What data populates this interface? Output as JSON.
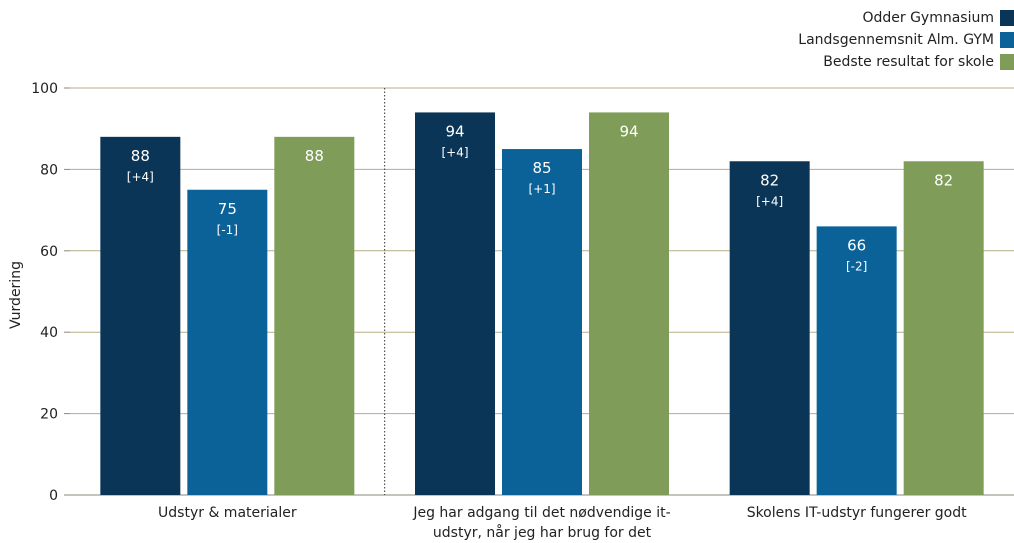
{
  "chart_data": {
    "type": "bar",
    "ylabel": "Vurdering",
    "ylim": [
      0,
      100
    ],
    "yticks": [
      0,
      20,
      40,
      60,
      80,
      100
    ],
    "grid": true,
    "legend_position": "top-right",
    "categories": [
      [
        "Udstyr & materialer"
      ],
      [
        "Jeg har adgang til det nødvendige it-",
        "udstyr, når jeg har brug for det"
      ],
      [
        "Skolens IT-udstyr fungerer godt"
      ]
    ],
    "series": [
      {
        "name": "Odder Gymnasium",
        "color": "#0b3556",
        "values": [
          88,
          94,
          82
        ],
        "labels": [
          "88",
          "94",
          "82"
        ],
        "changes": [
          "[+4]",
          "[+4]",
          "[+4]"
        ]
      },
      {
        "name": "Landsgennemsnit Alm. GYM",
        "color": "#0a6298",
        "values": [
          75,
          85,
          66
        ],
        "labels": [
          "75",
          "85",
          "66"
        ],
        "changes": [
          "[-1]",
          "[+1]",
          "[-2]"
        ]
      },
      {
        "name": "Bedste resultat for skole",
        "color": "#7f9c58",
        "values": [
          88,
          94,
          82
        ],
        "labels": [
          "88",
          "94",
          "82"
        ],
        "changes": [
          "",
          "",
          ""
        ]
      }
    ],
    "separator_after_category": 0
  }
}
